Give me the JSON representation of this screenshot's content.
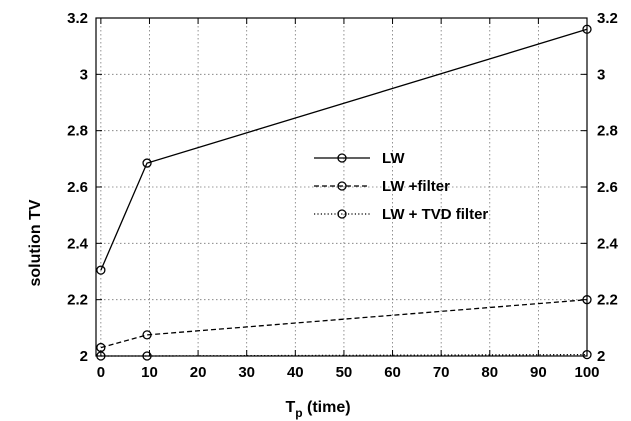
{
  "chart_data": {
    "type": "line",
    "x": [
      0,
      9.5,
      100
    ],
    "xticks": [
      "0",
      "10",
      "20",
      "30",
      "40",
      "50",
      "60",
      "70",
      "80",
      "90",
      "100"
    ],
    "yticks": [
      "2",
      "2.2",
      "2.4",
      "2.6",
      "2.8",
      "3",
      "3.2"
    ],
    "xlim": [
      -1,
      100
    ],
    "ylim": [
      2,
      3.2
    ],
    "xlabel_main": "T",
    "xlabel_sub": "p",
    "xlabel_rest": " (time)",
    "ylabel": "solution TV",
    "grid": true,
    "legend_position": "center-right",
    "series": [
      {
        "name": "LW",
        "values": [
          2.305,
          2.685,
          3.16
        ],
        "line_style": "solid",
        "marker": "circle"
      },
      {
        "name": "LW +filter",
        "values": [
          2.03,
          2.075,
          2.2
        ],
        "line_style": "dashed",
        "marker": "circle"
      },
      {
        "name": "LW + TVD filter",
        "values": [
          2.0,
          2.0,
          2.005
        ],
        "line_style": "dotted",
        "marker": "circle"
      }
    ]
  }
}
